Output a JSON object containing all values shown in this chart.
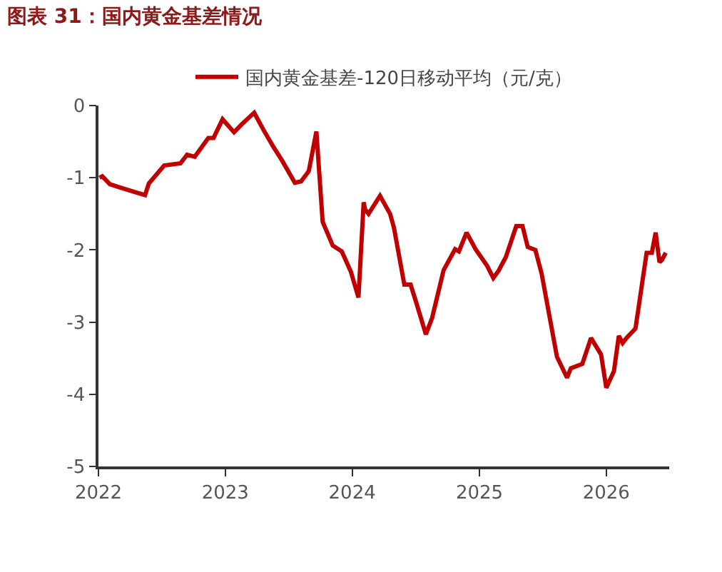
{
  "chart_data": {
    "type": "line",
    "title": "图表 31：国内黄金基差情况",
    "x": [
      "2022-01-04",
      "2022-01-12",
      "2022-02-03",
      "2022-03-14",
      "2022-04-23",
      "2022-05-15",
      "2022-05-26",
      "2022-07-09",
      "2022-08-25",
      "2022-09-13",
      "2022-10-05",
      "2022-11-13",
      "2022-11-28",
      "2022-12-24",
      "2023-01-26",
      "2023-02-17",
      "2023-03-25",
      "2023-04-20",
      "2023-05-19",
      "2023-06-13",
      "2023-07-20",
      "2023-08-07",
      "2023-08-29",
      "2023-09-20",
      "2023-10-08",
      "2023-11-06",
      "2023-12-02",
      "2023-12-28",
      "2024-01-19",
      "2024-02-03",
      "2024-02-07",
      "2024-02-17",
      "2024-03-21",
      "2024-04-19",
      "2024-04-30",
      "2024-05-30",
      "2024-06-17",
      "2024-07-02",
      "2024-07-31",
      "2024-08-18",
      "2024-09-20",
      "2024-10-23",
      "2024-11-03",
      "2024-11-25",
      "2024-12-21",
      "2025-01-23",
      "2025-02-10",
      "2025-02-25",
      "2025-03-18",
      "2025-04-17",
      "2025-05-05",
      "2025-05-20",
      "2025-06-11",
      "2025-06-29",
      "2025-08-12",
      "2025-09-10",
      "2025-09-21",
      "2025-10-24",
      "2025-11-18",
      "2025-12-17",
      "2026-01-01",
      "2026-01-23",
      "2026-02-06",
      "2026-02-17",
      "2026-02-28",
      "2026-03-26",
      "2026-04-27",
      "2026-05-12",
      "2026-05-23",
      "2026-06-03",
      "2026-06-10",
      "2026-06-21"
    ],
    "series": [
      {
        "name": "国内黄金基差-120日移动平均（元/克）",
        "color": "#c00000",
        "values": [
          -1.0,
          -0.98,
          -1.09,
          -1.15,
          -1.21,
          -1.24,
          -1.08,
          -0.83,
          -0.8,
          -0.68,
          -0.71,
          -0.45,
          -0.45,
          -0.19,
          -0.37,
          -0.26,
          -0.1,
          -0.33,
          -0.57,
          -0.76,
          -1.07,
          -1.05,
          -0.91,
          -0.36,
          -1.61,
          -1.94,
          -2.02,
          -2.3,
          -2.66,
          -1.34,
          -1.44,
          -1.5,
          -1.25,
          -1.5,
          -1.69,
          -2.48,
          -2.48,
          -2.71,
          -3.17,
          -2.94,
          -2.28,
          -1.99,
          -2.02,
          -1.76,
          -1.99,
          -2.22,
          -2.39,
          -2.29,
          -2.1,
          -1.67,
          -1.67,
          -1.96,
          -2.0,
          -2.33,
          -3.48,
          -3.77,
          -3.64,
          -3.58,
          -3.22,
          -3.45,
          -3.91,
          -3.68,
          -3.19,
          -3.29,
          -3.22,
          -3.09,
          -2.04,
          -2.04,
          -1.76,
          -2.17,
          -2.14,
          -2.04
        ]
      }
    ],
    "xlim": [
      "2022-01-01",
      "2026-07-01"
    ],
    "xticks": [
      "2022",
      "2023",
      "2024",
      "2025",
      "2026"
    ],
    "ylim": [
      -5,
      0
    ],
    "yticks": [
      -5,
      -4,
      -3,
      -2,
      -1,
      0
    ],
    "legend": "top",
    "marker": "none",
    "line_style": "solid"
  }
}
